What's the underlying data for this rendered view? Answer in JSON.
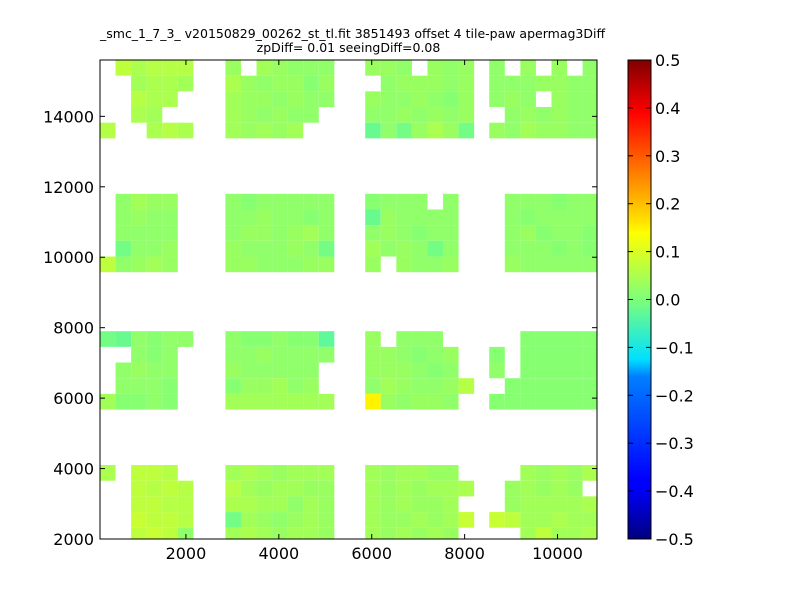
{
  "window": {
    "title": ""
  },
  "chart_data": {
    "type": "heatmap",
    "title": "_smc_1_7_3_ v20150829_00262_st_tl.fit 3851493 offset 4 tile-paw apermag3Diff",
    "subtitle": "zpDiff= 0.01 seeingDiff=0.08",
    "xlabel": "",
    "ylabel": "",
    "xlim": [
      150,
      10850
    ],
    "ylim": [
      2000,
      15600
    ],
    "xticks": [
      2000,
      4000,
      6000,
      8000,
      10000
    ],
    "yticks": [
      2000,
      4000,
      6000,
      8000,
      10000,
      12000,
      14000
    ],
    "grid": false,
    "colormap": "jet",
    "colorbar": {
      "min": -0.5,
      "max": 0.5,
      "ticks": [
        "0.5",
        "0.4",
        "0.3",
        "0.2",
        "0.1",
        "0.0",
        "−0.1",
        "−0.2",
        "−0.3",
        "−0.4",
        "−0.5"
      ]
    },
    "cell_width": 335,
    "cell_height": 445,
    "columns": [
      {
        "x_start": 150,
        "n": 6
      },
      {
        "x_start": 2850,
        "n": 7
      },
      {
        "x_start": 5860,
        "n": 7
      },
      {
        "x_start": 8530,
        "n": 7
      }
    ],
    "rows": [
      {
        "y_top": 15600,
        "n": 5
      },
      {
        "y_top": 11800,
        "n": 5
      },
      {
        "y_top": 7900,
        "n": 5
      },
      {
        "y_top": 4100,
        "n": 5
      }
    ],
    "bands": [
      [
        [
          [
            null,
            0.07,
            0.05,
            0.06,
            0.06,
            0.06
          ],
          [
            null,
            null,
            0.04,
            0.05,
            0.05,
            0.04
          ],
          [
            null,
            null,
            0.06,
            0.05,
            0.05,
            null
          ],
          [
            null,
            null,
            0.05,
            0.04,
            null,
            null
          ],
          [
            0.06,
            null,
            null,
            0.05,
            0.06,
            0.05
          ]
        ],
        [
          [
            0.03,
            null,
            0.04,
            0.03,
            0.02,
            0.02,
            0.02
          ],
          [
            0.05,
            0.03,
            0.02,
            0.03,
            0.03,
            0.01,
            0.03
          ],
          [
            0.04,
            0.03,
            0.03,
            0.02,
            0.03,
            0.02,
            0.02
          ],
          [
            0.04,
            0.03,
            0.02,
            0.03,
            0.02,
            0.02,
            null
          ],
          [
            0.04,
            0.03,
            0.04,
            0.03,
            0.04,
            null,
            null
          ]
        ],
        [
          [
            0.03,
            0.03,
            0.02,
            null,
            0.03,
            0.02,
            0.03
          ],
          [
            null,
            0.02,
            0.03,
            0.03,
            0.03,
            0.02,
            0.03
          ],
          [
            0.03,
            0.02,
            0.02,
            0.03,
            0.02,
            0.01,
            0.03
          ],
          [
            0.02,
            0.02,
            0.03,
            0.02,
            0.03,
            0.02,
            0.03
          ],
          [
            -0.02,
            0.02,
            -0.01,
            0.03,
            0.05,
            0.03,
            -0.01
          ]
        ],
        [
          [
            0.02,
            null,
            0.03,
            null,
            0.03,
            null,
            0.02
          ],
          [
            0.02,
            0.02,
            0.02,
            0.03,
            0.03,
            0.02,
            0.02
          ],
          [
            0.02,
            0.03,
            0.02,
            null,
            0.03,
            0.02,
            0.02
          ],
          [
            null,
            0.02,
            0.03,
            0.02,
            0.03,
            0.02,
            0.02
          ],
          [
            0.03,
            0.02,
            0.04,
            0.03,
            0.03,
            0.02,
            0.02
          ]
        ]
      ],
      [
        [
          [
            null,
            0.02,
            0.04,
            0.03,
            0.03,
            null
          ],
          [
            null,
            0.02,
            0.03,
            0.02,
            0.02,
            null
          ],
          [
            null,
            0.02,
            0.02,
            0.02,
            0.02,
            null
          ],
          [
            null,
            -0.01,
            0.02,
            0.02,
            0.03,
            null
          ],
          [
            0.07,
            0.02,
            0.03,
            0.04,
            0.03,
            null
          ]
        ],
        [
          [
            0.02,
            0.01,
            0.02,
            0.02,
            0.02,
            0.02,
            0.02
          ],
          [
            0.02,
            0.02,
            0.03,
            0.02,
            0.02,
            0.01,
            0.02
          ],
          [
            0.02,
            0.03,
            0.03,
            0.02,
            0.03,
            0.04,
            0.02
          ],
          [
            0.03,
            0.02,
            0.02,
            0.02,
            0.03,
            0.02,
            -0.01
          ],
          [
            0.03,
            0.03,
            0.02,
            0.02,
            0.02,
            0.03,
            0.03
          ]
        ],
        [
          [
            0.01,
            0.02,
            0.02,
            0.02,
            null,
            0.02,
            null
          ],
          [
            -0.02,
            0.03,
            0.02,
            0.02,
            0.02,
            0.02,
            null
          ],
          [
            0.02,
            0.03,
            0.02,
            0.01,
            0.02,
            0.02,
            null
          ],
          [
            0.04,
            0.02,
            0.03,
            0.02,
            -0.01,
            0.02,
            null
          ],
          [
            0.03,
            null,
            0.03,
            0.02,
            0.02,
            0.03,
            null
          ]
        ],
        [
          [
            null,
            0.02,
            0.02,
            0.02,
            0.01,
            0.02,
            0.02
          ],
          [
            null,
            0.02,
            0.01,
            0.02,
            0.02,
            0.02,
            0.02
          ],
          [
            null,
            0.02,
            0.03,
            0.01,
            0.02,
            0.02,
            0.01
          ],
          [
            null,
            0.02,
            0.02,
            0.02,
            0.01,
            0.02,
            0.01
          ],
          [
            null,
            0.03,
            0.02,
            0.02,
            0.02,
            0.02,
            0.02
          ]
        ]
      ],
      [
        [
          [
            -0.01,
            -0.02,
            0.02,
            0.01,
            0.02,
            0.02
          ],
          [
            null,
            null,
            0.02,
            0.01,
            0.02,
            null
          ],
          [
            null,
            0.02,
            0.03,
            0.02,
            0.02,
            null
          ],
          [
            null,
            0.02,
            0.02,
            0.02,
            0.01,
            null
          ],
          [
            0.04,
            0.01,
            0.01,
            0.02,
            0.01,
            null
          ]
        ],
        [
          [
            0.02,
            0.01,
            0.01,
            0.02,
            0.01,
            0.01,
            -0.03
          ],
          [
            0.02,
            0.02,
            0.03,
            0.02,
            0.02,
            0.02,
            0.02
          ],
          [
            0.03,
            0.02,
            0.02,
            0.02,
            0.02,
            0.02,
            null
          ],
          [
            0.01,
            0.03,
            0.03,
            0.04,
            0.02,
            0.03,
            null
          ],
          [
            0.04,
            0.04,
            0.04,
            0.04,
            0.04,
            0.04,
            0.04
          ]
        ],
        [
          [
            0.03,
            null,
            0.02,
            0.02,
            0.02,
            null,
            null
          ],
          [
            0.03,
            0.03,
            0.02,
            0.01,
            0.02,
            0.03,
            null
          ],
          [
            0.03,
            0.03,
            0.03,
            0.02,
            0.01,
            0.02,
            null
          ],
          [
            0.02,
            0.04,
            0.03,
            0.02,
            0.02,
            0.03,
            0.06
          ],
          [
            0.15,
            0.03,
            0.02,
            0.03,
            0.03,
            0.02,
            null
          ]
        ],
        [
          [
            null,
            null,
            0.01,
            0.01,
            0.01,
            0.01,
            0.01
          ],
          [
            0.01,
            null,
            0.01,
            0.01,
            0.01,
            0.01,
            0.01
          ],
          [
            0.02,
            null,
            0.01,
            0.01,
            0.01,
            0.01,
            0.01
          ],
          [
            null,
            0.01,
            0.01,
            0.01,
            0.01,
            0.01,
            0.01
          ],
          [
            0.01,
            0.01,
            0.01,
            0.01,
            0.01,
            0.01,
            0.01
          ]
        ]
      ],
      [
        [
          [
            0.05,
            null,
            0.07,
            0.07,
            0.06,
            null
          ],
          [
            null,
            null,
            0.07,
            0.06,
            0.07,
            0.06
          ],
          [
            null,
            null,
            0.07,
            0.07,
            0.06,
            0.06
          ],
          [
            null,
            null,
            0.08,
            0.07,
            0.07,
            0.06
          ],
          [
            null,
            null,
            0.07,
            0.08,
            0.07,
            0.02
          ]
        ],
        [
          [
            0.04,
            0.05,
            0.04,
            0.03,
            0.04,
            0.04,
            0.04
          ],
          [
            0.06,
            0.04,
            0.03,
            0.04,
            0.04,
            0.03,
            0.03
          ],
          [
            0.05,
            0.05,
            0.04,
            0.04,
            0.02,
            0.04,
            0.03
          ],
          [
            -0.01,
            0.04,
            0.03,
            0.02,
            0.03,
            0.04,
            0.03
          ],
          [
            0.04,
            0.05,
            0.04,
            0.03,
            0.04,
            0.04,
            0.03
          ]
        ],
        [
          [
            0.04,
            0.03,
            0.04,
            0.04,
            0.03,
            0.03,
            null
          ],
          [
            0.04,
            0.03,
            0.04,
            0.03,
            0.04,
            0.04,
            0.05
          ],
          [
            0.04,
            0.03,
            0.04,
            0.03,
            0.03,
            0.04,
            null
          ],
          [
            0.04,
            0.03,
            0.03,
            0.04,
            0.03,
            0.04,
            0.08
          ],
          [
            0.04,
            0.03,
            0.04,
            0.03,
            0.04,
            0.03,
            null
          ]
        ],
        [
          [
            null,
            null,
            0.04,
            0.03,
            0.04,
            0.03,
            0.05
          ],
          [
            null,
            0.03,
            0.04,
            0.03,
            0.04,
            0.03,
            null
          ],
          [
            null,
            0.03,
            0.04,
            0.04,
            0.04,
            0.04,
            0.05
          ],
          [
            0.08,
            0.07,
            0.04,
            0.04,
            0.05,
            0.04,
            0.04
          ],
          [
            null,
            null,
            0.04,
            0.07,
            0.04,
            0.04,
            0.05
          ]
        ]
      ]
    ]
  }
}
